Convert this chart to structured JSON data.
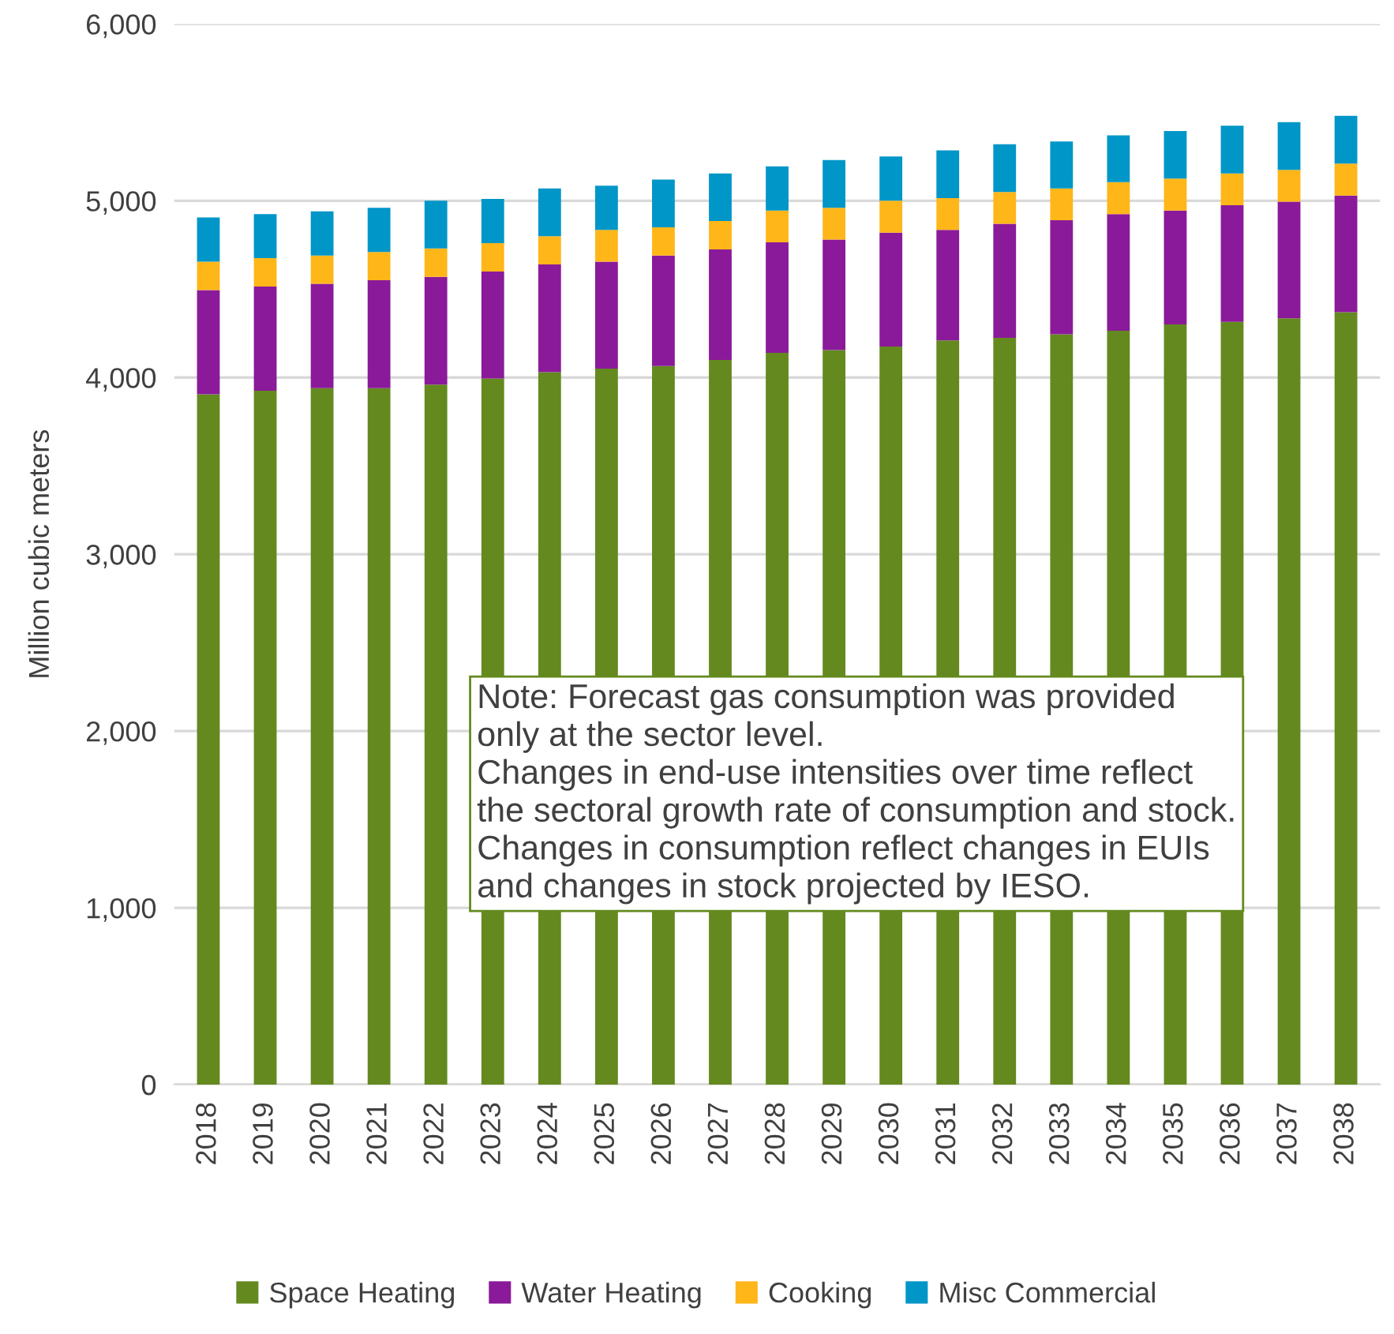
{
  "chart_data": {
    "type": "bar",
    "stacked": true,
    "categories": [
      "2018",
      "2019",
      "2020",
      "2021",
      "2022",
      "2023",
      "2024",
      "2025",
      "2026",
      "2027",
      "2028",
      "2029",
      "2030",
      "2031",
      "2032",
      "2033",
      "2034",
      "2035",
      "2036",
      "2037",
      "2038"
    ],
    "series": [
      {
        "name": "Space Heating",
        "color": "#648a1f",
        "values": [
          3905,
          3925,
          3940,
          3940,
          3960,
          3995,
          4030,
          4050,
          4065,
          4100,
          4140,
          4155,
          4175,
          4210,
          4225,
          4245,
          4265,
          4300,
          4315,
          4335,
          4370
        ]
      },
      {
        "name": "Water Heating",
        "color": "#8b1a9a",
        "values": [
          590,
          590,
          590,
          610,
          610,
          605,
          610,
          605,
          625,
          625,
          625,
          625,
          645,
          625,
          645,
          645,
          660,
          645,
          660,
          660,
          660
        ]
      },
      {
        "name": "Cooking",
        "color": "#ffb619",
        "values": [
          160,
          160,
          160,
          160,
          160,
          160,
          160,
          180,
          160,
          160,
          180,
          180,
          180,
          180,
          180,
          180,
          180,
          180,
          180,
          180,
          180
        ]
      },
      {
        "name": "Misc Commercial",
        "color": "#0096c8",
        "values": [
          250,
          250,
          250,
          250,
          270,
          250,
          270,
          250,
          270,
          270,
          250,
          270,
          250,
          270,
          270,
          265,
          265,
          270,
          270,
          270,
          270
        ]
      }
    ],
    "ylabel": "Million cubic meters",
    "ylim": [
      0,
      6000
    ],
    "yticks": [
      {
        "value": 0,
        "label": "0"
      },
      {
        "value": 1000,
        "label": "1,000"
      },
      {
        "value": 2000,
        "label": "2,000"
      },
      {
        "value": 3000,
        "label": "3,000"
      },
      {
        "value": 4000,
        "label": "4,000"
      },
      {
        "value": 5000,
        "label": "5,000"
      },
      {
        "value": 6000,
        "label": "6,000"
      }
    ],
    "grid": "y",
    "legend": "bottom",
    "annotations": [
      "Note: Forecast gas consumption was provided\nonly at the sector level.\nChanges in end-use intensities over time reflect\nthe sectoral growth rate of consumption and stock.\nChanges in consumption reflect changes in EUIs\nand changes in stock projected by IESO."
    ]
  }
}
